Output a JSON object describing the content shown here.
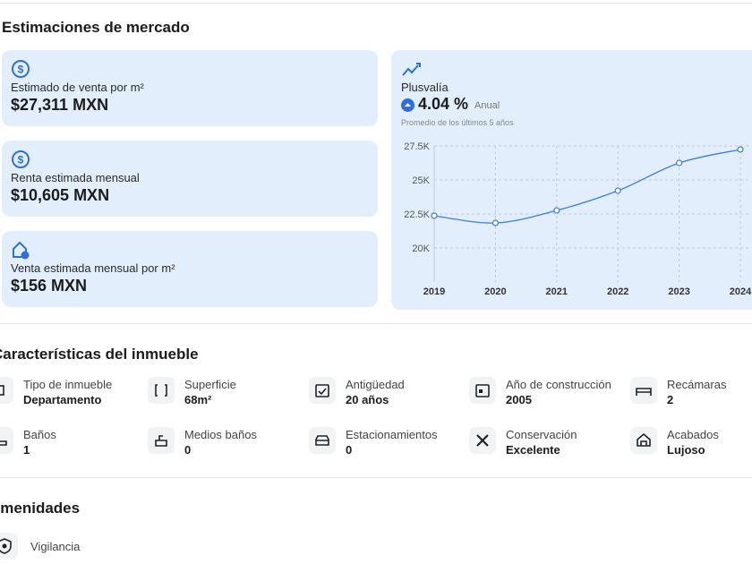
{
  "market": {
    "title": "Estimaciones de mercado",
    "cards": [
      {
        "label": "Estimado de venta por m²",
        "value": "$27,311 MXN"
      },
      {
        "label": "Renta estimada mensual",
        "value": "$10,605 MXN"
      },
      {
        "label": "Venta estimada mensual por m²",
        "value": "$156 MXN"
      }
    ],
    "plusvalia": {
      "title": "Plusvalía",
      "rate": "4.04 %",
      "period": "Anual",
      "note": "Promedio de los últimos 5 años"
    }
  },
  "chart_data": {
    "type": "line",
    "x": [
      2019,
      2020,
      2021,
      2022,
      2023,
      2024
    ],
    "series": [
      {
        "color": "#3b7de0",
        "values": [
          22370,
          21840,
          22760,
          24210,
          26250,
          27240
        ]
      }
    ],
    "xlim": [
      2019,
      2024
    ],
    "xticks": [
      2019,
      2020,
      2021,
      2022,
      2023,
      2024
    ],
    "ylim": [
      17500,
      27500
    ],
    "yticks": [
      {
        "value": 20000,
        "label": "20K"
      },
      {
        "value": 22500,
        "label": "22.5K"
      },
      {
        "value": 25000,
        "label": "25K"
      },
      {
        "value": 27500,
        "label": "27.5K"
      }
    ],
    "grid": true
  },
  "features": {
    "title": "Características del inmueble",
    "items": [
      {
        "label": "Tipo de inmueble",
        "value": "Departamento"
      },
      {
        "label": "Superficie",
        "value": "68m²"
      },
      {
        "label": "Antigüedad",
        "value": "20 años"
      },
      {
        "label": "Año de construcción",
        "value": "2005"
      },
      {
        "label": "Recámaras",
        "value": "2"
      },
      {
        "label": "Baños",
        "value": "1"
      },
      {
        "label": "Medios baños",
        "value": "0"
      },
      {
        "label": "Estacionamientos",
        "value": "0"
      },
      {
        "label": "Conservación",
        "value": "Excelente"
      },
      {
        "label": "Acabados",
        "value": "Lujoso"
      }
    ]
  },
  "amenities": {
    "title": "Amenidades",
    "items": [
      "Vigilancia"
    ]
  }
}
